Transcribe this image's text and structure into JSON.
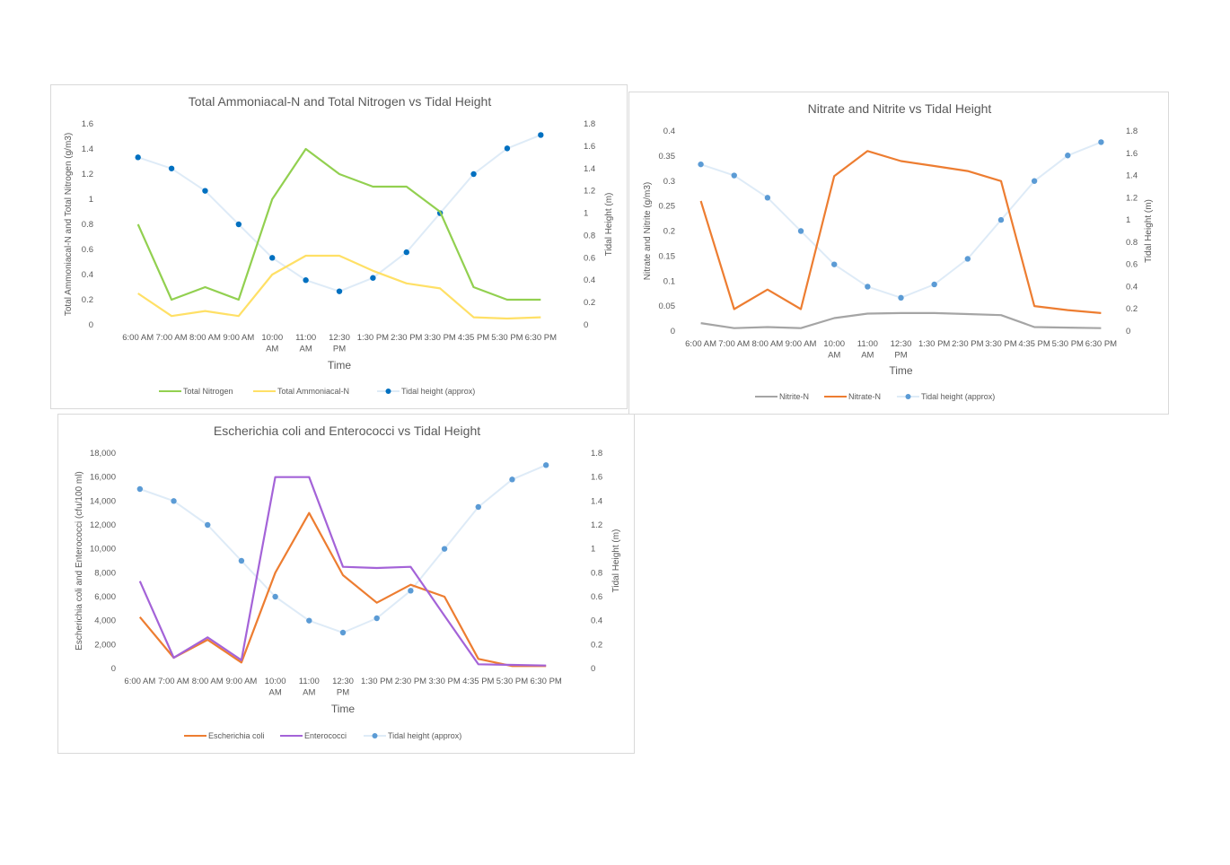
{
  "chart_data": [
    {
      "type": "line",
      "title": "Total Ammoniacal-N and Total Nitrogen vs Tidal Height",
      "xlabel": "Time",
      "ylabel": "Total Ammoniacal-N and Total Nitrogen  (g/m3)",
      "y2label": "Tidal Height (m)",
      "categories": [
        "6:00 AM",
        "7:00 AM",
        "8:00 AM",
        "9:00 AM",
        "10:00 AM",
        "11:00 AM",
        "12:30 PM",
        "1:30 PM",
        "2:30 PM",
        "3:30 PM",
        "4:35 PM",
        "5:30 PM",
        "6:30 PM"
      ],
      "ylim": [
        0,
        1.6
      ],
      "yticks": [
        "0",
        "0.2",
        "0.4",
        "0.6",
        "0.8",
        "1",
        "1.2",
        "1.4",
        "1.6"
      ],
      "y2lim": [
        0,
        1.8
      ],
      "y2ticks": [
        "0",
        "0.2",
        "0.4",
        "0.6",
        "0.8",
        "1",
        "1.2",
        "1.4",
        "1.6",
        "1.8"
      ],
      "series": [
        {
          "name": "Total Nitrogen",
          "axis": "left",
          "color": "#92d050",
          "values": [
            0.8,
            0.2,
            0.3,
            0.2,
            1.0,
            1.4,
            1.2,
            1.1,
            1.1,
            0.9,
            0.3,
            0.2,
            0.2
          ]
        },
        {
          "name": "Total Ammoniacal-N",
          "axis": "left",
          "color": "#ffe066",
          "values": [
            0.25,
            0.07,
            0.11,
            0.07,
            0.4,
            0.55,
            0.55,
            0.43,
            0.33,
            0.29,
            0.06,
            0.05,
            0.06
          ]
        },
        {
          "name": "Tidal height (approx)",
          "axis": "right",
          "color": "#0070c0",
          "line_color": "#deebf7",
          "marker": true,
          "values": [
            1.5,
            1.4,
            1.2,
            0.9,
            0.6,
            0.4,
            0.3,
            0.42,
            0.65,
            1.0,
            1.35,
            1.58,
            1.7
          ]
        }
      ],
      "legend_position": "bottom",
      "grid": false
    },
    {
      "type": "line",
      "title": "Nitrate and Nitrite vs Tidal Height",
      "xlabel": "Time",
      "ylabel": "Nitrate and Nitrite (g/m3)",
      "y2label": "Tidal Height (m)",
      "categories": [
        "6:00 AM",
        "7:00 AM",
        "8:00 AM",
        "9:00 AM",
        "10:00 AM",
        "11:00 AM",
        "12:30 PM",
        "1:30 PM",
        "2:30 PM",
        "3:30 PM",
        "4:35 PM",
        "5:30 PM",
        "6:30 PM"
      ],
      "ylim": [
        0,
        0.4
      ],
      "yticks": [
        "0",
        "0.05",
        "0.1",
        "0.15",
        "0.2",
        "0.25",
        "0.3",
        "0.35",
        "0.4"
      ],
      "y2lim": [
        0,
        1.8
      ],
      "y2ticks": [
        "0",
        "0.2",
        "0.4",
        "0.6",
        "0.8",
        "1",
        "1.2",
        "1.4",
        "1.6",
        "1.8"
      ],
      "series": [
        {
          "name": "Nitrite-N",
          "axis": "left",
          "color": "#a5a5a5",
          "values": [
            0.016,
            0.006,
            0.008,
            0.006,
            0.026,
            0.035,
            0.036,
            0.036,
            0.034,
            0.032,
            0.008,
            0.007,
            0.006
          ]
        },
        {
          "name": "Nitrate-N",
          "axis": "left",
          "color": "#ed7d31",
          "values": [
            0.26,
            0.044,
            0.083,
            0.044,
            0.31,
            0.36,
            0.34,
            0.33,
            0.32,
            0.3,
            0.05,
            0.042,
            0.036
          ]
        },
        {
          "name": "Tidal height (approx)",
          "axis": "right",
          "color": "#5b9bd5",
          "line_color": "#deebf7",
          "marker": true,
          "values": [
            1.5,
            1.4,
            1.2,
            0.9,
            0.6,
            0.4,
            0.3,
            0.42,
            0.65,
            1.0,
            1.35,
            1.58,
            1.7
          ]
        }
      ],
      "legend_position": "bottom",
      "grid": false
    },
    {
      "type": "line",
      "title": "Escherichia coli and Enterococci vs Tidal Height",
      "xlabel": "Time",
      "ylabel": "Escherichia coli and Enterococci  (cfu/100 ml)",
      "y2label": "Tidal Height (m)",
      "categories": [
        "6:00 AM",
        "7:00 AM",
        "8:00 AM",
        "9:00 AM",
        "10:00 AM",
        "11:00 AM",
        "12:30 PM",
        "1:30 PM",
        "2:30 PM",
        "3:30 PM",
        "4:35 PM",
        "5:30 PM",
        "6:30 PM"
      ],
      "ylim": [
        0,
        18000
      ],
      "yticks": [
        "0",
        "2,000",
        "4,000",
        "6,000",
        "8,000",
        "10,000",
        "12,000",
        "14,000",
        "16,000",
        "18,000"
      ],
      "y2lim": [
        0,
        1.8
      ],
      "y2ticks": [
        "0",
        "0.2",
        "0.4",
        "0.6",
        "0.8",
        "1",
        "1.2",
        "1.4",
        "1.6",
        "1.8"
      ],
      "series": [
        {
          "name": "Escherichia coli",
          "axis": "left",
          "color": "#ed7d31",
          "values": [
            4300,
            900,
            2400,
            500,
            8000,
            13000,
            7800,
            5500,
            7000,
            6000,
            800,
            200,
            200
          ]
        },
        {
          "name": "Enterococci",
          "axis": "left",
          "color": "#a463d8",
          "values": [
            7300,
            900,
            2600,
            700,
            16000,
            16000,
            8500,
            8400,
            8500,
            4400,
            350,
            300,
            250
          ]
        },
        {
          "name": "Tidal height (approx)",
          "axis": "right",
          "color": "#5b9bd5",
          "line_color": "#deebf7",
          "marker": true,
          "values": [
            1.5,
            1.4,
            1.2,
            0.9,
            0.6,
            0.4,
            0.3,
            0.42,
            0.65,
            1.0,
            1.35,
            1.58,
            1.7
          ]
        }
      ],
      "legend_position": "bottom",
      "grid": false
    }
  ]
}
